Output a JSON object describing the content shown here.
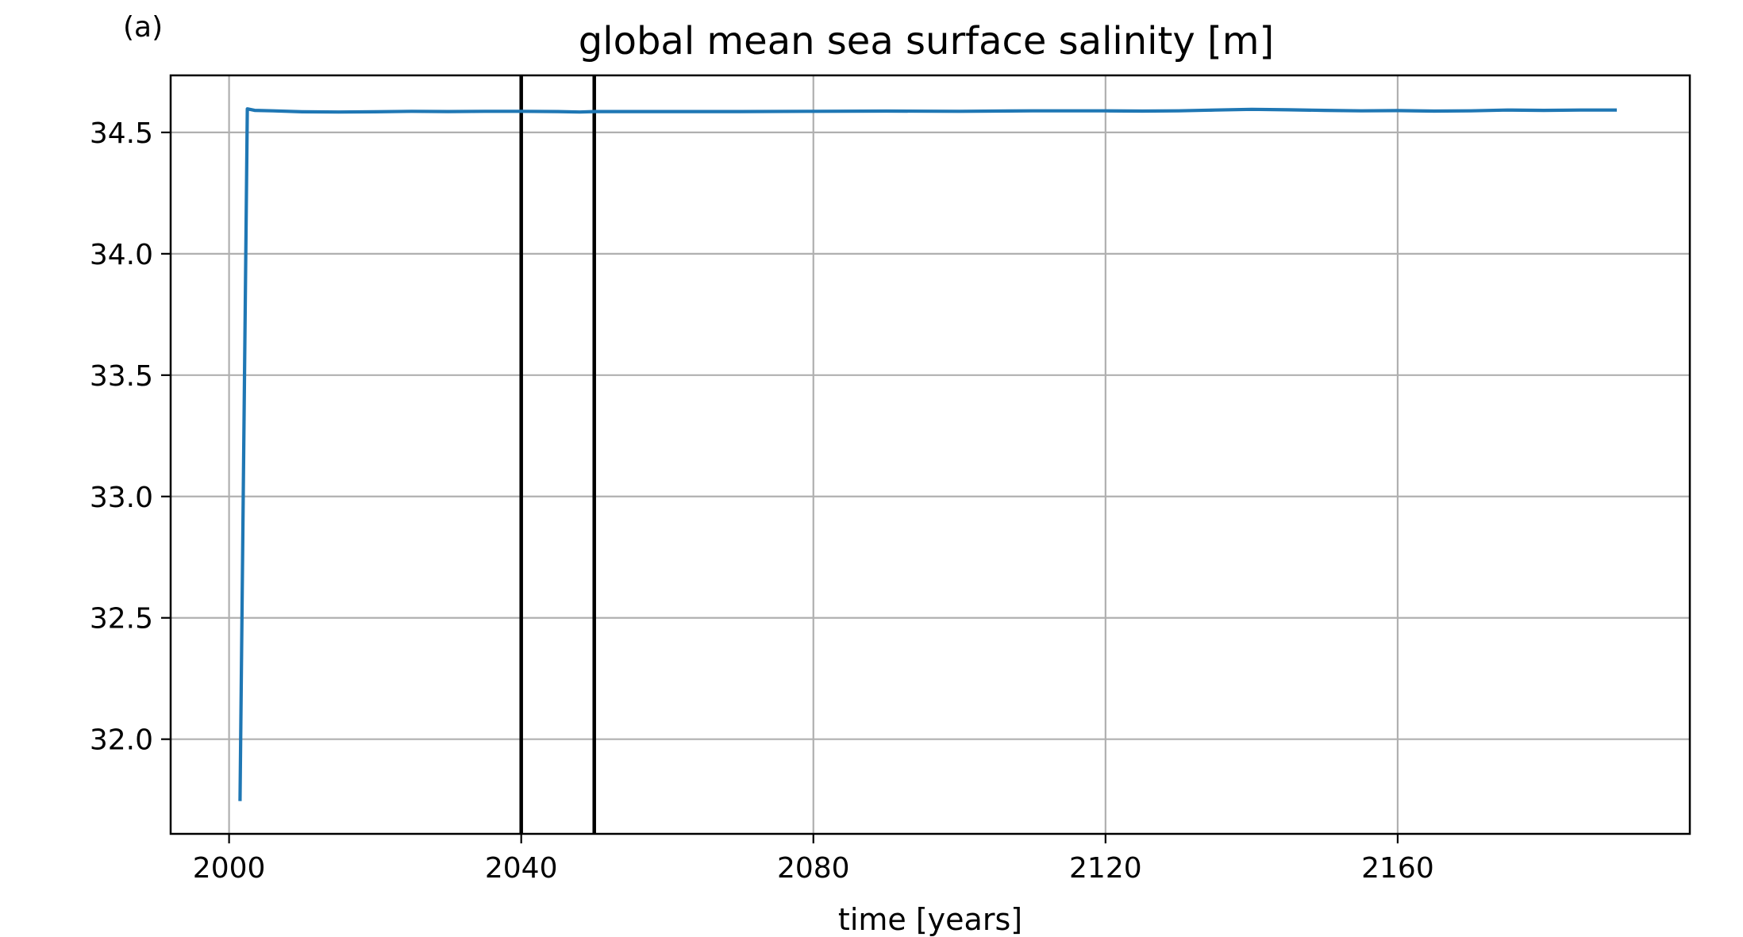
{
  "chart_data": {
    "type": "line",
    "panel_label": "(a)",
    "title": "global mean sea surface salinity [m]",
    "xlabel": "time [years]",
    "ylabel": "",
    "xlim": [
      1992,
      2200
    ],
    "ylim": [
      31.61,
      34.735
    ],
    "grid": true,
    "xticks": [
      2000,
      2040,
      2080,
      2120,
      2160
    ],
    "xtick_labels": [
      "2000",
      "2040",
      "2080",
      "2120",
      "2160"
    ],
    "yticks": [
      32.0,
      32.5,
      33.0,
      33.5,
      34.0,
      34.5
    ],
    "ytick_labels": [
      "32.0",
      "32.5",
      "33.0",
      "33.5",
      "34.0",
      "34.5"
    ],
    "vertical_lines": [
      2040,
      2050
    ],
    "vertical_line_color": "#000000",
    "series": [
      {
        "color": "#1f77b4",
        "x": [
          2001.5,
          2002.5,
          2003.5,
          2006,
          2010,
          2015,
          2020,
          2025,
          2030,
          2035,
          2040,
          2045,
          2048,
          2050,
          2055,
          2060,
          2070,
          2080,
          2090,
          2100,
          2110,
          2120,
          2125,
          2130,
          2135,
          2140,
          2145,
          2150,
          2155,
          2160,
          2165,
          2170,
          2175,
          2180,
          2185,
          2190
        ],
        "y": [
          31.745,
          34.597,
          34.591,
          34.589,
          34.585,
          34.584,
          34.585,
          34.587,
          34.586,
          34.587,
          34.587,
          34.586,
          34.584,
          34.586,
          34.586,
          34.586,
          34.586,
          34.587,
          34.588,
          34.587,
          34.589,
          34.589,
          34.588,
          34.589,
          34.592,
          34.595,
          34.593,
          34.591,
          34.589,
          34.59,
          34.588,
          34.589,
          34.592,
          34.591,
          34.592,
          34.592
        ]
      }
    ]
  }
}
